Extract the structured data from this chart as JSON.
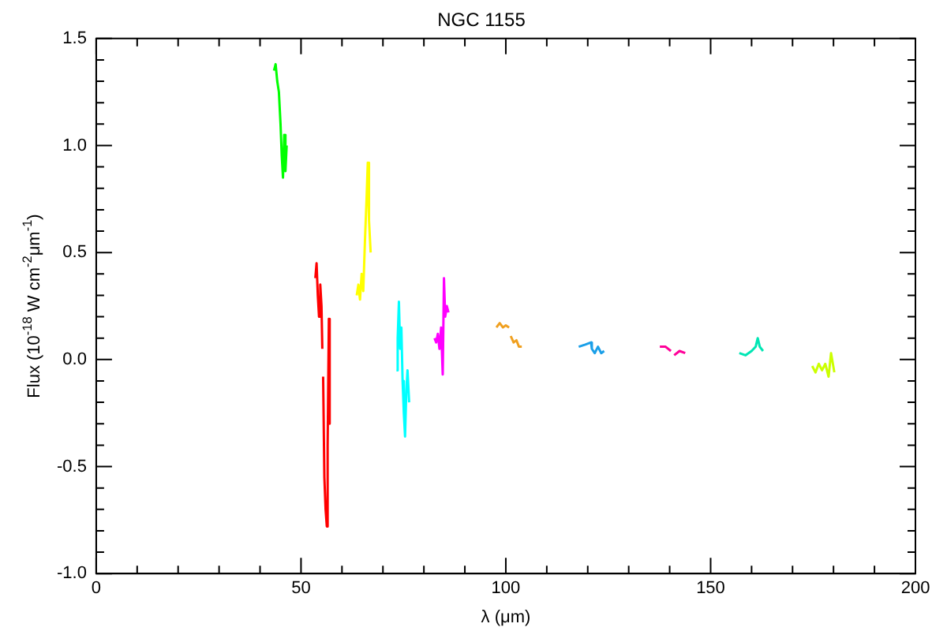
{
  "chart_data": {
    "type": "line",
    "title": "NGC 1155",
    "xlabel": "λ (μm)",
    "ylabel": "Flux (10$^{-18}$ W cm$^{-2}$μm$^{-1}$)",
    "xlim": [
      0,
      200
    ],
    "ylim": [
      -1.0,
      1.5
    ],
    "xticks": [
      0,
      {
        "value": 10,
        "label": null
      },
      {
        "value": 20,
        "label": null
      },
      {
        "value": 30,
        "label": null
      },
      {
        "value": 40,
        "label": null
      },
      50,
      {
        "value": 60,
        "label": null
      },
      {
        "value": 70,
        "label": null
      },
      {
        "value": 80,
        "label": null
      },
      {
        "value": 90,
        "label": null
      },
      100,
      {
        "value": 110,
        "label": null
      },
      {
        "value": 120,
        "label": null
      },
      {
        "value": 130,
        "label": null
      },
      {
        "value": 140,
        "label": null
      },
      150,
      {
        "value": 160,
        "label": null
      },
      {
        "value": 170,
        "label": null
      },
      {
        "value": 180,
        "label": null
      },
      {
        "value": 190,
        "label": null
      },
      200
    ],
    "yticks": [
      {
        "value": -1.0,
        "label": "-1.0"
      },
      {
        "value": -0.9,
        "label": null
      },
      {
        "value": -0.8,
        "label": null
      },
      {
        "value": -0.7,
        "label": null
      },
      {
        "value": -0.6,
        "label": null
      },
      {
        "value": -0.5,
        "label": "-0.5"
      },
      {
        "value": -0.4,
        "label": null
      },
      {
        "value": -0.3,
        "label": null
      },
      {
        "value": -0.2,
        "label": null
      },
      {
        "value": -0.1,
        "label": null
      },
      {
        "value": 0,
        "label": "0.0"
      },
      {
        "value": 0.1,
        "label": null
      },
      {
        "value": 0.2,
        "label": null
      },
      {
        "value": 0.3,
        "label": null
      },
      {
        "value": 0.4,
        "label": null
      },
      {
        "value": 0.5,
        "label": "0.5"
      },
      {
        "value": 0.6,
        "label": null
      },
      {
        "value": 0.7,
        "label": null
      },
      {
        "value": 0.8,
        "label": null
      },
      {
        "value": 0.9,
        "label": null
      },
      {
        "value": 1.0,
        "label": "1.0"
      },
      {
        "value": 1.1,
        "label": null
      },
      {
        "value": 1.2,
        "label": null
      },
      {
        "value": 1.3,
        "label": null
      },
      {
        "value": 1.4,
        "label": null
      },
      {
        "value": 1.5,
        "label": "1.5"
      }
    ],
    "marker": "none",
    "legend": false,
    "series": [
      {
        "color": "#00ff00",
        "x": [
          43.4,
          43.8,
          44.2,
          44.6,
          45.0,
          45.3,
          45.6,
          45.9,
          46.2,
          46.5
        ],
        "values": [
          1.35,
          1.38,
          1.3,
          1.25,
          1.1,
          0.95,
          0.85,
          1.05,
          0.88,
          1.0
        ]
      },
      {
        "color": "#ff0000",
        "x": [
          53.5,
          53.8,
          54.1,
          54.4,
          54.7,
          55.0,
          55.2,
          55.3,
          55.4,
          55.7,
          56.0,
          56.3,
          56.5,
          56.8,
          57.0
        ],
        "values": [
          0.38,
          0.45,
          0.3,
          0.2,
          0.35,
          0.25,
          0.05,
          null,
          -0.08,
          -0.55,
          -0.7,
          -0.78,
          -0.4,
          0.19,
          -0.3
        ]
      },
      {
        "color": "#ffff00",
        "x": [
          63.6,
          64.0,
          64.4,
          64.8,
          65.2,
          65.6,
          66.0,
          66.3,
          66.6,
          67.0
        ],
        "values": [
          0.3,
          0.35,
          0.28,
          0.4,
          0.32,
          0.55,
          0.75,
          0.92,
          0.65,
          0.5
        ]
      },
      {
        "color": "#00ffff",
        "x": [
          73.3,
          73.6,
          73.9,
          74.2,
          74.5,
          74.8,
          75.1,
          75.4,
          75.7,
          76.0,
          76.4
        ],
        "values": [
          -0.05,
          0.1,
          0.27,
          0.05,
          0.15,
          -0.1,
          -0.25,
          -0.36,
          -0.15,
          -0.05,
          -0.2
        ]
      },
      {
        "color": "#ff00ff",
        "x": [
          82.6,
          83.0,
          83.4,
          83.8,
          84.2,
          84.6,
          84.9,
          85.2,
          85.6,
          86.0
        ],
        "values": [
          0.1,
          0.08,
          0.12,
          0.05,
          0.15,
          -0.07,
          0.38,
          0.2,
          0.25,
          0.22
        ]
      },
      {
        "color": "#f0a020",
        "x": [
          97.7,
          98.5,
          99.3,
          100.0,
          100.8,
          101.0,
          101.2,
          101.9,
          102.6,
          103.2,
          103.9
        ],
        "values": [
          0.15,
          0.17,
          0.15,
          0.16,
          0.15,
          null,
          0.11,
          0.08,
          0.09,
          0.06,
          0.06
        ]
      },
      {
        "color": "#1a9fe8",
        "x": [
          117.8,
          119.4,
          120.8,
          121.0,
          121.7,
          122.5,
          123.3,
          124.0
        ],
        "values": [
          0.06,
          0.07,
          0.08,
          0.05,
          0.03,
          0.06,
          0.03,
          0.04
        ]
      },
      {
        "color": "#ff0099",
        "x": [
          137.6,
          139.0,
          140.3,
          140.7,
          141.1,
          142.4,
          143.8
        ],
        "values": [
          0.06,
          0.06,
          0.04,
          null,
          0.02,
          0.04,
          0.03
        ]
      },
      {
        "color": "#00e6b4",
        "x": [
          157.0,
          158.5,
          160.0,
          161.0,
          161.5,
          162.0,
          162.8
        ],
        "values": [
          0.03,
          0.02,
          0.04,
          0.06,
          0.1,
          0.06,
          0.04
        ]
      },
      {
        "color": "#ccff00",
        "x": [
          174.8,
          175.6,
          176.4,
          177.2,
          178.0,
          178.8,
          179.4,
          180.2
        ],
        "values": [
          -0.03,
          -0.06,
          -0.02,
          -0.05,
          -0.02,
          -0.08,
          0.03,
          -0.06
        ]
      }
    ]
  }
}
